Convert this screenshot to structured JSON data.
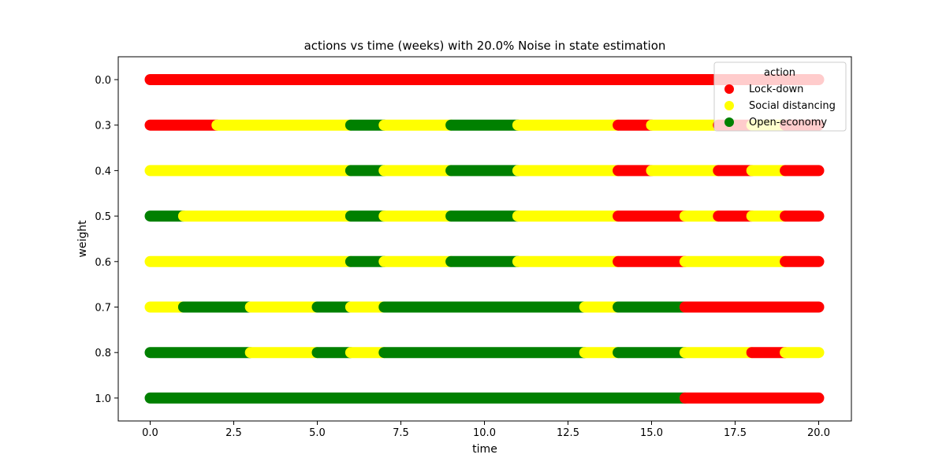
{
  "chart_data": {
    "type": "scatter",
    "title": "actions vs time (weeks) with 20.0% Noise in state estimation",
    "xlabel": "time",
    "ylabel": "weight",
    "xlim": [
      -0.9,
      20.9
    ],
    "x_ticks": [
      0.0,
      2.5,
      5.0,
      7.5,
      10.0,
      12.5,
      15.0,
      17.5,
      20.0
    ],
    "x_tick_labels": [
      "0.0",
      "2.5",
      "5.0",
      "7.5",
      "10.0",
      "12.5",
      "15.0",
      "17.5",
      "20.0"
    ],
    "categories": [
      "0.0",
      "0.3",
      "0.4",
      "0.5",
      "0.6",
      "0.7",
      "0.8",
      "1.0"
    ],
    "grid": false,
    "legend": {
      "title": "action",
      "placement": "top-right",
      "entries": [
        {
          "key": "lockdown",
          "label": "Lock-down",
          "color": "#ff0000"
        },
        {
          "key": "social",
          "label": "Social distancing",
          "color": "#ffff00"
        },
        {
          "key": "open",
          "label": "Open-economy",
          "color": "#008000"
        }
      ]
    },
    "rows": [
      {
        "weight": "0.0",
        "segments": [
          {
            "start": 0,
            "end": 20,
            "action": "lockdown"
          }
        ]
      },
      {
        "weight": "0.3",
        "segments": [
          {
            "start": 0,
            "end": 2,
            "action": "lockdown"
          },
          {
            "start": 2,
            "end": 6,
            "action": "social"
          },
          {
            "start": 6,
            "end": 7,
            "action": "open"
          },
          {
            "start": 7,
            "end": 9,
            "action": "social"
          },
          {
            "start": 9,
            "end": 11,
            "action": "open"
          },
          {
            "start": 11,
            "end": 14,
            "action": "social"
          },
          {
            "start": 14,
            "end": 15,
            "action": "lockdown"
          },
          {
            "start": 15,
            "end": 17,
            "action": "social"
          },
          {
            "start": 17,
            "end": 18,
            "action": "lockdown"
          },
          {
            "start": 18,
            "end": 19,
            "action": "social"
          },
          {
            "start": 19,
            "end": 20,
            "action": "lockdown"
          }
        ]
      },
      {
        "weight": "0.4",
        "segments": [
          {
            "start": 0,
            "end": 6,
            "action": "social"
          },
          {
            "start": 6,
            "end": 7,
            "action": "open"
          },
          {
            "start": 7,
            "end": 9,
            "action": "social"
          },
          {
            "start": 9,
            "end": 11,
            "action": "open"
          },
          {
            "start": 11,
            "end": 14,
            "action": "social"
          },
          {
            "start": 14,
            "end": 15,
            "action": "lockdown"
          },
          {
            "start": 15,
            "end": 17,
            "action": "social"
          },
          {
            "start": 17,
            "end": 18,
            "action": "lockdown"
          },
          {
            "start": 18,
            "end": 19,
            "action": "social"
          },
          {
            "start": 19,
            "end": 20,
            "action": "lockdown"
          }
        ]
      },
      {
        "weight": "0.5",
        "segments": [
          {
            "start": 0,
            "end": 1,
            "action": "open"
          },
          {
            "start": 1,
            "end": 6,
            "action": "social"
          },
          {
            "start": 6,
            "end": 7,
            "action": "open"
          },
          {
            "start": 7,
            "end": 9,
            "action": "social"
          },
          {
            "start": 9,
            "end": 11,
            "action": "open"
          },
          {
            "start": 11,
            "end": 14,
            "action": "social"
          },
          {
            "start": 14,
            "end": 16,
            "action": "lockdown"
          },
          {
            "start": 16,
            "end": 17,
            "action": "social"
          },
          {
            "start": 17,
            "end": 18,
            "action": "lockdown"
          },
          {
            "start": 18,
            "end": 19,
            "action": "social"
          },
          {
            "start": 19,
            "end": 20,
            "action": "lockdown"
          }
        ]
      },
      {
        "weight": "0.6",
        "segments": [
          {
            "start": 0,
            "end": 6,
            "action": "social"
          },
          {
            "start": 6,
            "end": 7,
            "action": "open"
          },
          {
            "start": 7,
            "end": 9,
            "action": "social"
          },
          {
            "start": 9,
            "end": 11,
            "action": "open"
          },
          {
            "start": 11,
            "end": 14,
            "action": "social"
          },
          {
            "start": 14,
            "end": 16,
            "action": "lockdown"
          },
          {
            "start": 16,
            "end": 19,
            "action": "social"
          },
          {
            "start": 19,
            "end": 20,
            "action": "lockdown"
          }
        ]
      },
      {
        "weight": "0.7",
        "segments": [
          {
            "start": 0,
            "end": 1,
            "action": "social"
          },
          {
            "start": 1,
            "end": 3,
            "action": "open"
          },
          {
            "start": 3,
            "end": 5,
            "action": "social"
          },
          {
            "start": 5,
            "end": 6,
            "action": "open"
          },
          {
            "start": 6,
            "end": 7,
            "action": "social"
          },
          {
            "start": 7,
            "end": 13,
            "action": "open"
          },
          {
            "start": 13,
            "end": 14,
            "action": "social"
          },
          {
            "start": 14,
            "end": 16,
            "action": "open"
          },
          {
            "start": 16,
            "end": 20,
            "action": "lockdown"
          }
        ]
      },
      {
        "weight": "0.8",
        "segments": [
          {
            "start": 0,
            "end": 3,
            "action": "open"
          },
          {
            "start": 3,
            "end": 5,
            "action": "social"
          },
          {
            "start": 5,
            "end": 6,
            "action": "open"
          },
          {
            "start": 6,
            "end": 7,
            "action": "social"
          },
          {
            "start": 7,
            "end": 13,
            "action": "open"
          },
          {
            "start": 13,
            "end": 14,
            "action": "social"
          },
          {
            "start": 14,
            "end": 16,
            "action": "open"
          },
          {
            "start": 16,
            "end": 18,
            "action": "social"
          },
          {
            "start": 18,
            "end": 19,
            "action": "lockdown"
          },
          {
            "start": 19,
            "end": 20,
            "action": "social"
          }
        ]
      },
      {
        "weight": "1.0",
        "segments": [
          {
            "start": 0,
            "end": 16,
            "action": "open"
          },
          {
            "start": 16,
            "end": 20,
            "action": "lockdown"
          }
        ]
      }
    ]
  }
}
